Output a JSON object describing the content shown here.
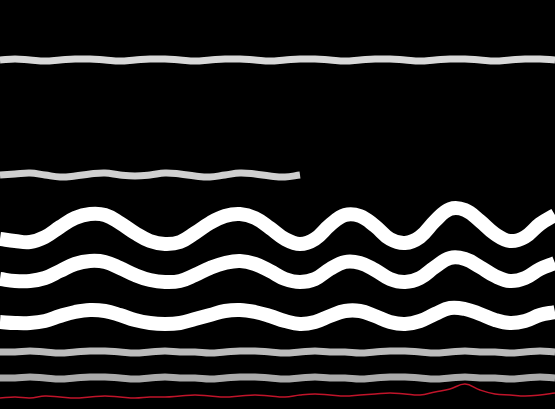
{
  "chart_data": {
    "type": "line",
    "x": [
      0,
      15,
      30,
      45,
      60,
      75,
      90,
      105,
      120,
      135,
      150,
      165,
      180,
      195,
      210,
      225,
      240,
      255,
      270,
      285,
      300,
      315,
      330,
      345,
      360,
      375,
      390,
      405,
      420,
      435,
      450,
      465,
      480,
      495,
      510,
      525,
      540,
      555
    ],
    "xlim": [
      0,
      555
    ],
    "ylim": [
      0,
      409
    ],
    "grid": false,
    "tick_labels": false,
    "series": [
      {
        "color": "#d8d8d8",
        "line_style": "medium",
        "marker": "none",
        "values": [
          349,
          350,
          349,
          348,
          349,
          350,
          350,
          349,
          348,
          349,
          350,
          350,
          349,
          348,
          349,
          350,
          350,
          349,
          348,
          349,
          350,
          350,
          349,
          348,
          349,
          350,
          350,
          349,
          348,
          349,
          350,
          350,
          349,
          348,
          349,
          350,
          350,
          349
        ]
      },
      {
        "color": "#d0d0d0",
        "line_style": "medium",
        "marker": "none",
        "values": [
          234,
          235,
          236,
          234,
          232,
          233,
          235,
          236,
          234,
          233,
          234,
          236,
          235,
          233,
          232,
          234,
          236,
          235,
          233,
          232,
          234,
          null,
          null,
          null,
          null,
          null,
          null,
          null,
          null,
          null,
          null,
          null,
          null,
          null,
          null,
          null,
          null,
          null
        ]
      },
      {
        "color": "#ffffff",
        "line_style": "thick",
        "marker": "none",
        "values": [
          170,
          168,
          167,
          172,
          182,
          191,
          195,
          194,
          186,
          176,
          168,
          165,
          167,
          176,
          186,
          193,
          195,
          191,
          181,
          170,
          165,
          170,
          184,
          194,
          193,
          183,
          170,
          166,
          172,
          188,
          200,
          199,
          188,
          175,
          168,
          172,
          185,
          194
        ]
      },
      {
        "color": "#ffffff",
        "line_style": "thick",
        "marker": "none",
        "values": [
          130,
          128,
          128,
          131,
          138,
          145,
          148,
          147,
          141,
          134,
          129,
          127,
          128,
          134,
          141,
          146,
          148,
          145,
          138,
          130,
          127,
          130,
          140,
          147,
          146,
          139,
          130,
          127,
          131,
          142,
          151,
          150,
          142,
          133,
          128,
          131,
          140,
          146
        ]
      },
      {
        "color": "#ffffff",
        "line_style": "thick",
        "marker": "none",
        "values": [
          87,
          86,
          86,
          88,
          93,
          97,
          99,
          98,
          94,
          89,
          86,
          85,
          86,
          90,
          94,
          98,
          99,
          97,
          93,
          88,
          85,
          87,
          93,
          98,
          98,
          93,
          87,
          85,
          88,
          95,
          101,
          100,
          95,
          89,
          86,
          88,
          94,
          97
        ]
      },
      {
        "color": "#bbbbbb",
        "line_style": "medium",
        "marker": "none",
        "values": [
          57,
          57,
          58,
          57,
          56,
          57,
          58,
          58,
          57,
          56,
          57,
          58,
          57,
          57,
          56,
          57,
          58,
          58,
          57,
          56,
          57,
          58,
          57,
          57,
          56,
          57,
          58,
          58,
          57,
          56,
          57,
          58,
          57,
          57,
          56,
          57,
          58,
          57
        ]
      },
      {
        "color": "#aaaaaa",
        "line_style": "medium",
        "marker": "none",
        "values": [
          31,
          31,
          32,
          31,
          30,
          31,
          32,
          32,
          31,
          30,
          31,
          32,
          31,
          31,
          30,
          31,
          32,
          32,
          31,
          30,
          31,
          32,
          31,
          31,
          30,
          31,
          32,
          32,
          31,
          30,
          31,
          32,
          31,
          31,
          30,
          31,
          32,
          31
        ]
      },
      {
        "color": "#c0142a",
        "line_style": "thin",
        "marker": "none",
        "values": [
          11,
          12,
          11,
          13,
          12,
          11,
          12,
          13,
          12,
          11,
          12,
          12,
          13,
          14,
          13,
          12,
          13,
          14,
          13,
          12,
          14,
          15,
          14,
          13,
          14,
          15,
          16,
          15,
          14,
          17,
          20,
          25,
          19,
          15,
          14,
          13,
          14,
          16
        ]
      }
    ]
  }
}
